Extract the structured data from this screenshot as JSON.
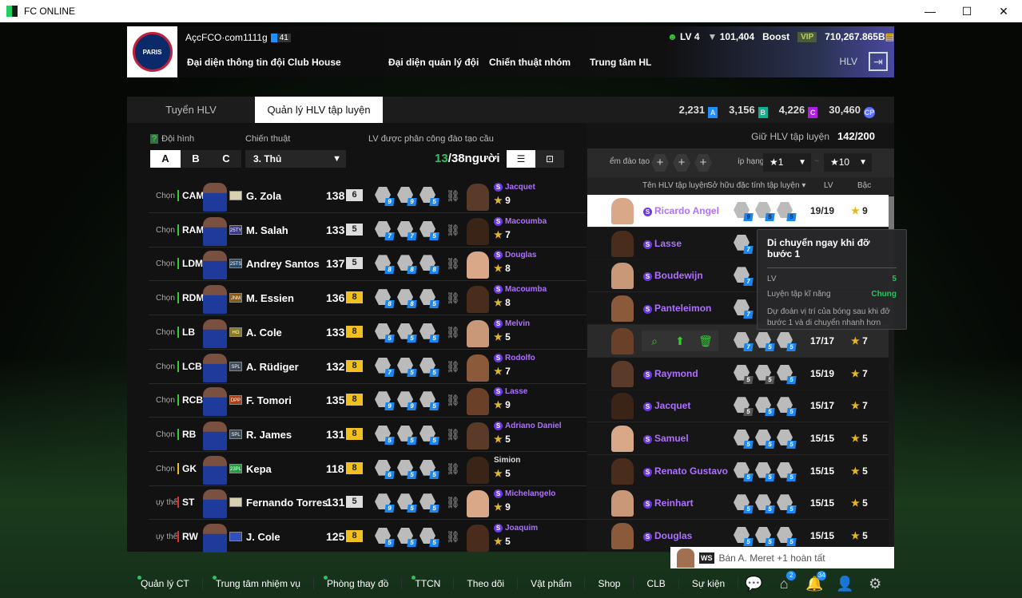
{
  "window": {
    "title": "FC ONLINE",
    "minimize": "—",
    "maximize": "☐",
    "close": "✕"
  },
  "header": {
    "crest_text": "PARIS",
    "account": "AçcFCO·com1111g",
    "account_level": "41",
    "nav": [
      "Đại diện thông tin đội",
      "Club House",
      "Đại diện quản lý đội",
      "Chiến thuật nhóm",
      "Trung tâm HL"
    ],
    "level": "LV 4",
    "trophies": "101,404",
    "boost": "Boost",
    "vip": "VIP",
    "bp": "710,267.865B",
    "hlv": "HLV"
  },
  "tabs": [
    {
      "label": "Tuyển HLV",
      "active": false
    },
    {
      "label": "Quản lý HLV tập luyện",
      "active": true
    }
  ],
  "currency": [
    {
      "value": "2,231",
      "code": "A",
      "color": "#1e8fff"
    },
    {
      "value": "3,156",
      "code": "B",
      "color": "#10b090"
    },
    {
      "value": "4,226",
      "code": "C",
      "color": "#b020e0"
    },
    {
      "value": "30,460",
      "code": "CP",
      "color": "#5a70ff"
    }
  ],
  "left": {
    "formation_label": "Đội hình",
    "help": "?",
    "formation_options": [
      "A",
      "B",
      "C"
    ],
    "formation_selected": "A",
    "tactic_label": "Chiến thuật",
    "tactic_value": "3. Thủ",
    "assigned_label": "LV được phân công đào tạo cầu thủ",
    "assigned_current": "13",
    "assigned_total": "/38người",
    "rows": [
      {
        "action": "Chọn",
        "pos": "CAM",
        "posColor": "#3c3",
        "club": "",
        "clubColor": "#d8d0b0",
        "name": "G. Zola",
        "ovr": "138",
        "grade": "6",
        "gradeColor": "#ddd",
        "skills": [
          "9",
          "9",
          "5"
        ],
        "coach": "Jacquet",
        "special": true,
        "stars": "9"
      },
      {
        "action": "Chọn",
        "pos": "RAM",
        "posColor": "#3c3",
        "club": "25TY",
        "clubColor": "#3a3a8a",
        "name": "M. Salah",
        "ovr": "133",
        "grade": "5",
        "gradeColor": "#ddd",
        "skills": [
          "7",
          "7",
          "5"
        ],
        "coach": "Macoumba",
        "special": true,
        "stars": "7"
      },
      {
        "action": "Chọn",
        "pos": "LDM",
        "posColor": "#3c3",
        "club": "25TS",
        "clubColor": "#2a4a6a",
        "name": "Andrey Santos",
        "ovr": "137",
        "grade": "5",
        "gradeColor": "#ddd",
        "skills": [
          "8",
          "8",
          "8"
        ],
        "coach": "Douglas",
        "special": true,
        "stars": "8"
      },
      {
        "action": "Chọn",
        "pos": "RDM",
        "posColor": "#3c3",
        "club": "JNM",
        "clubColor": "#8a5a10",
        "name": "M. Essien",
        "ovr": "136",
        "grade": "8",
        "gradeColor": "#f0c020",
        "skills": [
          "8",
          "8",
          "5"
        ],
        "coach": "Macoumba",
        "special": true,
        "stars": "8"
      },
      {
        "action": "Chọn",
        "pos": "LB",
        "posColor": "#3c3",
        "club": "HG",
        "clubColor": "#8a7a20",
        "name": "A. Cole",
        "ovr": "133",
        "grade": "8",
        "gradeColor": "#f0c020",
        "skills": [
          "5",
          "5",
          "5"
        ],
        "coach": "Melvin",
        "special": true,
        "stars": "5"
      },
      {
        "action": "Chọn",
        "pos": "LCB",
        "posColor": "#3c3",
        "club": "SPL",
        "clubColor": "#3a4a5a",
        "name": "A. Rüdiger",
        "ovr": "132",
        "grade": "8",
        "gradeColor": "#f0c020",
        "skills": [
          "7",
          "5",
          "5"
        ],
        "coach": "Rodolfo",
        "special": true,
        "stars": "7"
      },
      {
        "action": "Chọn",
        "pos": "RCB",
        "posColor": "#3c3",
        "club": "DPP",
        "clubColor": "#b04010",
        "name": "F. Tomori",
        "ovr": "135",
        "grade": "8",
        "gradeColor": "#f0c020",
        "skills": [
          "9",
          "9",
          "5"
        ],
        "coach": "Lasse",
        "special": true,
        "stars": "9"
      },
      {
        "action": "Chọn",
        "pos": "RB",
        "posColor": "#3c3",
        "club": "SPL",
        "clubColor": "#3a4a5a",
        "name": "R. James",
        "ovr": "131",
        "grade": "8",
        "gradeColor": "#f0c020",
        "skills": [
          "5",
          "5",
          "5"
        ],
        "coach": "Adriano Daniel",
        "special": true,
        "stars": "5"
      },
      {
        "action": "Chọn",
        "pos": "GK",
        "posColor": "#f0c020",
        "club": "23PL",
        "clubColor": "#20a040",
        "name": "Kepa",
        "ovr": "118",
        "grade": "8",
        "gradeColor": "#f0c020",
        "skills": [
          "6",
          "5",
          "5"
        ],
        "coach": "Simion",
        "special": false,
        "stars": "5"
      },
      {
        "action": "ụy thế",
        "pos": "ST",
        "posColor": "#e03030",
        "club": "",
        "clubColor": "#d8d0b0",
        "name": "Fernando Torres",
        "ovr": "131",
        "grade": "5",
        "gradeColor": "#ddd",
        "skills": [
          "9",
          "5",
          "5"
        ],
        "coach": "Michelangelo",
        "special": true,
        "stars": "9"
      },
      {
        "action": "ụy thế",
        "pos": "RW",
        "posColor": "#e03030",
        "club": "",
        "clubColor": "#3050c0",
        "name": "J. Cole",
        "ovr": "125",
        "grade": "8",
        "gradeColor": "#f0c020",
        "skills": [
          "5",
          "5",
          "5"
        ],
        "coach": "Joaquim",
        "special": true,
        "stars": "5"
      }
    ]
  },
  "right": {
    "keep_label": "Giữ HLV tập luyện",
    "keep_value": "142/200",
    "filter_label": "ểm đào tạo",
    "rank_label": "íp hạng",
    "rank_from": "★1",
    "rank_to": "★10",
    "rank_sep": "~",
    "columns": {
      "name": "Tên HLV tập luyện",
      "skills": "Sở hữu đặc tính tập luyện ▾",
      "lv": "LV",
      "grade": "Bậc"
    },
    "rows": [
      {
        "name": "Ricardo Angel",
        "skills": [
          "9",
          "5",
          "5"
        ],
        "lv": "19/19",
        "stars": "9",
        "state": "selected"
      },
      {
        "name": "Lasse",
        "skills": [
          "7"
        ],
        "lv": "",
        "stars": "",
        "state": ""
      },
      {
        "name": "Boudewijn",
        "skills": [
          "7"
        ],
        "lv": "",
        "stars": "",
        "state": ""
      },
      {
        "name": "Panteleimon",
        "skills": [
          "7"
        ],
        "lv": "",
        "stars": "",
        "state": ""
      },
      {
        "name": "",
        "skills": [
          "7",
          "5",
          "5"
        ],
        "lv": "17/17",
        "stars": "7",
        "state": "hover"
      },
      {
        "name": "Raymond",
        "skills": [
          "5",
          "5",
          "5"
        ],
        "greySkills": 2,
        "lv": "15/19",
        "stars": "7",
        "state": ""
      },
      {
        "name": "Jacquet",
        "skills": [
          "5",
          "5",
          "5"
        ],
        "greySkills": 1,
        "lv": "15/17",
        "stars": "7",
        "state": ""
      },
      {
        "name": "Samuel",
        "skills": [
          "5",
          "5",
          "5"
        ],
        "lv": "15/15",
        "stars": "5",
        "state": ""
      },
      {
        "name": "Renato Gustavo",
        "skills": [
          "5",
          "5",
          "5"
        ],
        "lv": "15/15",
        "stars": "5",
        "state": ""
      },
      {
        "name": "Reinhart",
        "skills": [
          "5",
          "5",
          "5"
        ],
        "lv": "15/15",
        "stars": "5",
        "state": ""
      },
      {
        "name": "Douglas",
        "skills": [
          "5",
          "5",
          "5"
        ],
        "lv": "15/15",
        "stars": "5",
        "state": ""
      }
    ]
  },
  "tooltip": {
    "title": "Di chuyển ngay khi đỡ bước 1",
    "lv_label": "LV",
    "lv_value": "5",
    "type_label": "Luyện tập kĩ năng",
    "type_value": "Chung",
    "description": "Dự đoán vị trí của bóng sau khi đỡ bước 1 và di chuyển nhanh hơn"
  },
  "toast": {
    "badge": "WS",
    "text": "Bán A. Meret +1 hoàn tất"
  },
  "bottom": {
    "items": [
      {
        "label": "Quản lý CT",
        "dot": true
      },
      {
        "label": "Trung tâm nhiệm vụ",
        "dot": true
      },
      {
        "label": "Phòng thay đồ",
        "dot": true
      },
      {
        "label": "TTCN",
        "dot": true
      },
      {
        "label": "Theo dõi",
        "dot": false
      },
      {
        "label": "Vật phẩm",
        "dot": false
      },
      {
        "label": "Shop",
        "dot": false
      },
      {
        "label": "CLB",
        "dot": false
      },
      {
        "label": "Sự kiện",
        "dot": false
      }
    ],
    "icons": [
      {
        "name": "chat-icon",
        "glyph": "💬",
        "badge": ""
      },
      {
        "name": "mail-icon",
        "glyph": "⌂",
        "badge": "2"
      },
      {
        "name": "bell-icon",
        "glyph": "🔔",
        "badge": "34"
      },
      {
        "name": "profile-icon",
        "glyph": "👤",
        "badge": ""
      },
      {
        "name": "settings-icon",
        "glyph": "⚙",
        "badge": ""
      }
    ]
  }
}
